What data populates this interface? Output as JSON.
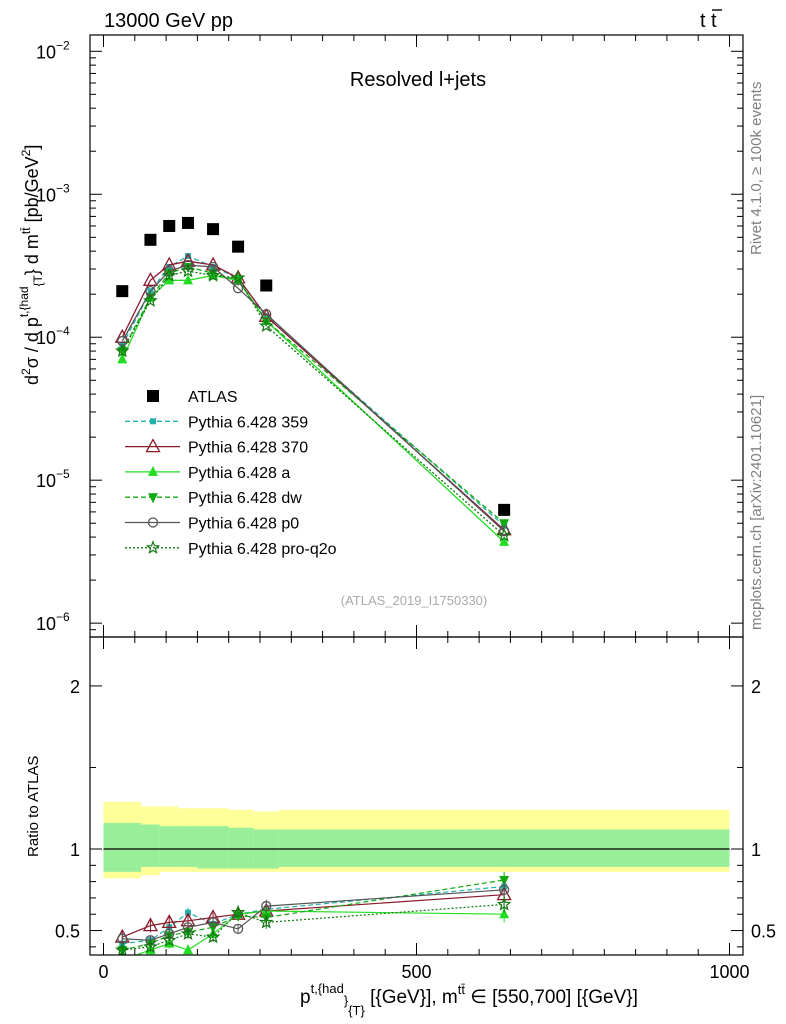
{
  "header": {
    "left": "13000 GeV pp",
    "right_base": "t",
    "right_bar": "t"
  },
  "side_labels": {
    "rivet": "Rivet 4.1.0, ≥ 100k events",
    "mcplots": "mcplots.cern.ch [arXiv:2401.10621]"
  },
  "chart_data": {
    "type": "line",
    "title": "Resolved l+jets",
    "watermark": "(ATLAS_2019_I1750330)",
    "xlim": [
      -25,
      1000
    ],
    "x_ticks": [
      "0",
      "500",
      "1000"
    ],
    "upper": {
      "yscale": "log",
      "ylim": [
        8e-07,
        0.013
      ],
      "y_ticks": [
        {
          "base": "10",
          "exp": "−2",
          "value": 0.01
        },
        {
          "base": "10",
          "exp": "−3",
          "value": 0.001
        },
        {
          "base": "10",
          "exp": "−4",
          "value": 0.0001
        },
        {
          "base": "10",
          "exp": "−5",
          "value": 1e-05
        },
        {
          "base": "10",
          "exp": "−6",
          "value": 1e-06
        }
      ],
      "ylabel": {
        "d2": "d",
        "sup2": "2",
        "sigma": "σ / d p",
        "sup_had": "t,{had",
        "sub_T": "{T",
        "mid": "} d m",
        "sup_tt": "tt̄",
        "units": " [pb/GeV",
        "units_sup": "2",
        "units_end": "]"
      }
    },
    "lower": {
      "ylim": [
        0.35,
        2.3
      ],
      "y_ticks": [
        {
          "label": "2",
          "value": 2
        },
        {
          "label": "1",
          "value": 1
        },
        {
          "label": "0.5",
          "value": 0.5
        }
      ],
      "ylabel": "Ratio to ATLAS"
    },
    "xlabel": {
      "p": "p",
      "sup_had": "t,{had",
      "sub_T": "}",
      "sub_T2": "{T}",
      "rest": " [{GeV}], m",
      "sup_tt": "tt̄",
      "range": " ∈ [550,700] [{GeV}]"
    },
    "bands": [
      {
        "x": [
          0,
          60
        ],
        "inner": [
          0.86,
          1.16
        ],
        "outer": [
          0.82,
          1.29
        ]
      },
      {
        "x": [
          60,
          90
        ],
        "inner": [
          0.89,
          1.15
        ],
        "outer": [
          0.84,
          1.26
        ]
      },
      {
        "x": [
          90,
          120
        ],
        "inner": [
          0.89,
          1.14
        ],
        "outer": [
          0.86,
          1.26
        ]
      },
      {
        "x": [
          120,
          150
        ],
        "inner": [
          0.89,
          1.14
        ],
        "outer": [
          0.86,
          1.25
        ]
      },
      {
        "x": [
          150,
          200
        ],
        "inner": [
          0.88,
          1.14
        ],
        "outer": [
          0.86,
          1.25
        ]
      },
      {
        "x": [
          200,
          240
        ],
        "inner": [
          0.88,
          1.13
        ],
        "outer": [
          0.86,
          1.24
        ]
      },
      {
        "x": [
          240,
          280
        ],
        "inner": [
          0.88,
          1.12
        ],
        "outer": [
          0.86,
          1.23
        ]
      },
      {
        "x": [
          280,
          1000
        ],
        "inner": [
          0.89,
          1.12
        ],
        "outer": [
          0.86,
          1.24
        ]
      }
    ],
    "series": [
      {
        "name": "ATLAS",
        "color": "#000000",
        "marker": "square",
        "dash": "none",
        "x": [
          30,
          75,
          105,
          135,
          175,
          215,
          260,
          640
        ],
        "y": [
          0.00021,
          0.00048,
          0.0006,
          0.00063,
          0.00057,
          0.00043,
          0.00023,
          6.2e-06
        ],
        "ratio": null
      },
      {
        "name": "Pythia 6.428 359",
        "color": "#20b2aa",
        "marker": "smallsquare",
        "dash": "5,3",
        "x": [
          30,
          75,
          105,
          135,
          175,
          215,
          260,
          640
        ],
        "y": [
          8.8e-05,
          0.00021,
          0.00031,
          0.00037,
          0.00031,
          0.00026,
          0.00014,
          4.8e-06
        ],
        "ratio": [
          0.42,
          0.44,
          0.52,
          0.61,
          0.54,
          0.6,
          0.63,
          0.77
        ],
        "err": [
          0.03,
          0.03,
          0.03,
          0.03,
          0.03,
          0.03,
          0.04,
          0.05
        ]
      },
      {
        "name": "Pythia 6.428 370",
        "color": "#8b1a2b",
        "marker": "triangle-open",
        "dash": "none",
        "x": [
          30,
          75,
          105,
          135,
          175,
          215,
          260,
          640
        ],
        "y": [
          0.0001,
          0.00025,
          0.00032,
          0.00034,
          0.00032,
          0.00026,
          0.00014,
          4.5e-06
        ],
        "ratio": [
          0.46,
          0.53,
          0.55,
          0.56,
          0.58,
          0.6,
          0.62,
          0.72
        ],
        "err": [
          0.04,
          0.04,
          0.04,
          0.04,
          0.03,
          0.03,
          0.04,
          0.05
        ]
      },
      {
        "name": "Pythia 6.428 a",
        "color": "#22dd22",
        "marker": "triangle-filled",
        "dash": "none",
        "x": [
          30,
          75,
          105,
          135,
          175,
          215,
          260,
          640
        ],
        "y": [
          7e-05,
          0.00019,
          0.00025,
          0.00025,
          0.00027,
          0.00025,
          0.00013,
          3.7e-06
        ],
        "ratio": [
          0.32,
          0.38,
          0.42,
          0.38,
          0.48,
          0.6,
          0.62,
          0.6
        ],
        "err": [
          0.03,
          0.03,
          0.03,
          0.03,
          0.03,
          0.03,
          0.04,
          0.05
        ]
      },
      {
        "name": "Pythia 6.428 dw",
        "color": "#11aa11",
        "marker": "triangle-down-filled",
        "dash": "5,3",
        "x": [
          30,
          75,
          105,
          135,
          175,
          215,
          260,
          640
        ],
        "y": [
          8e-05,
          0.00019,
          0.00028,
          0.00031,
          0.00028,
          0.00025,
          0.00013,
          5e-06
        ],
        "ratio": [
          0.38,
          0.42,
          0.47,
          0.49,
          0.52,
          0.59,
          0.58,
          0.81
        ],
        "err": [
          0.03,
          0.03,
          0.03,
          0.03,
          0.03,
          0.03,
          0.04,
          0.05
        ]
      },
      {
        "name": "Pythia 6.428 p0",
        "color": "#555555",
        "marker": "circle-open",
        "dash": "none",
        "x": [
          30,
          75,
          105,
          135,
          175,
          215,
          260,
          640
        ],
        "y": [
          9.4e-05,
          0.00021,
          0.00029,
          0.00032,
          0.00031,
          0.00022,
          0.000145,
          4.4e-06
        ],
        "ratio": [
          0.45,
          0.44,
          0.48,
          0.52,
          0.55,
          0.51,
          0.65,
          0.75
        ],
        "err": [
          0.03,
          0.03,
          0.03,
          0.03,
          0.03,
          0.03,
          0.04,
          0.05
        ]
      },
      {
        "name": "Pythia 6.428 pro-q2o",
        "color": "#117711",
        "marker": "star",
        "dash": "2,2",
        "x": [
          30,
          75,
          105,
          135,
          175,
          215,
          260,
          640
        ],
        "y": [
          8e-05,
          0.00018,
          0.00027,
          0.00029,
          0.00027,
          0.00026,
          0.00012,
          4.1e-06
        ],
        "ratio": [
          0.38,
          0.4,
          0.44,
          0.48,
          0.46,
          0.61,
          0.55,
          0.66
        ],
        "err": [
          0.03,
          0.03,
          0.03,
          0.03,
          0.03,
          0.03,
          0.04,
          0.05
        ]
      }
    ]
  }
}
